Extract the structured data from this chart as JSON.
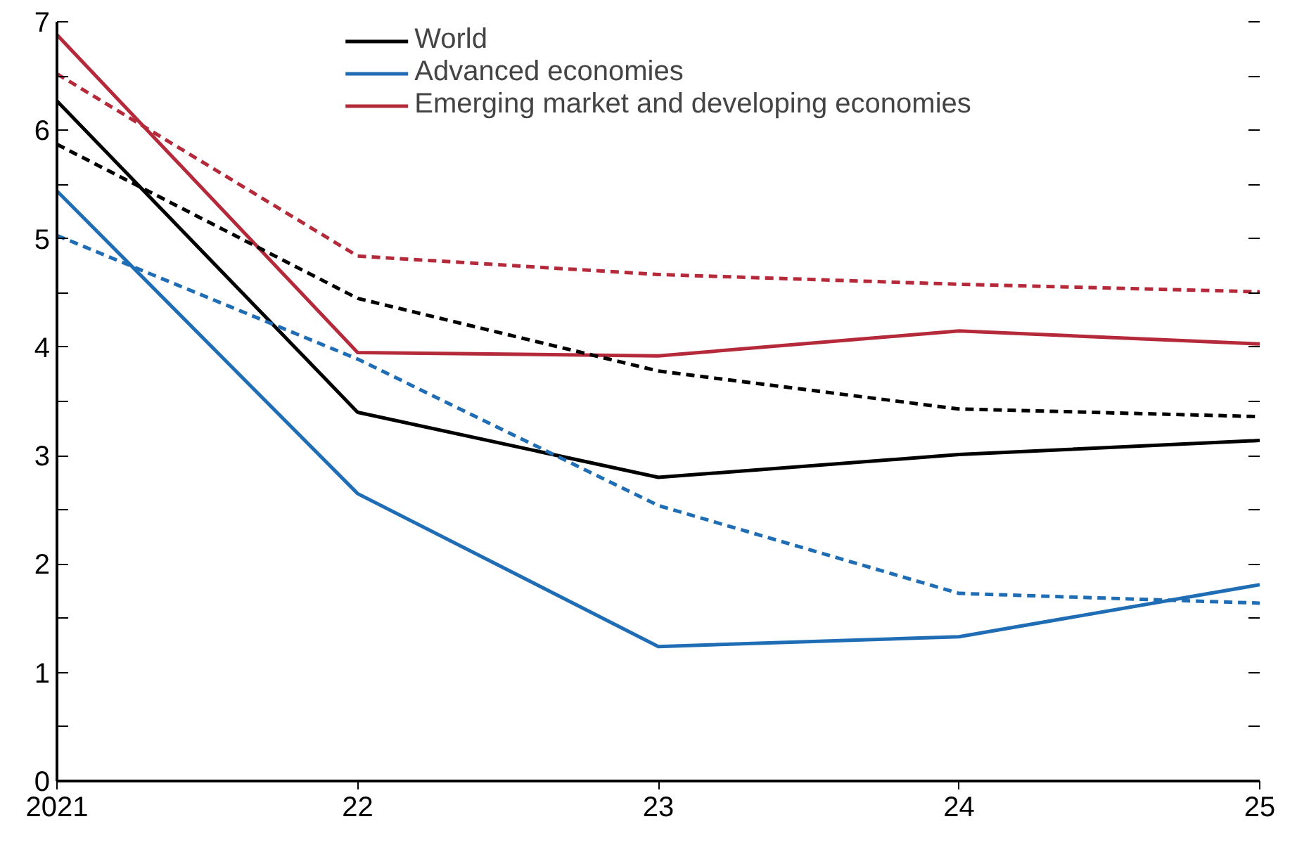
{
  "chart_data": {
    "type": "line",
    "x": [
      2021,
      2022,
      2023,
      2024,
      2025
    ],
    "xlim": [
      2021,
      2025
    ],
    "xticks": [
      {
        "value": 2021,
        "label": "2021"
      },
      {
        "value": 2022,
        "label": "22"
      },
      {
        "value": 2023,
        "label": "23"
      },
      {
        "value": 2024,
        "label": "24"
      },
      {
        "value": 2025,
        "label": "25"
      }
    ],
    "ylim": [
      0,
      7
    ],
    "yticks": [
      0,
      {
        "value": 0.5,
        "label": null
      },
      1,
      {
        "value": 1.5,
        "label": null
      },
      2,
      {
        "value": 2.5,
        "label": null
      },
      3,
      {
        "value": 3.5,
        "label": null
      },
      4,
      {
        "value": 4.5,
        "label": null
      },
      5,
      {
        "value": 5.5,
        "label": null
      },
      6,
      {
        "value": 6.5,
        "label": null
      },
      7
    ],
    "series": [
      {
        "name": "World",
        "color": "#000000",
        "line_style": "solid",
        "values": [
          6.27,
          3.4,
          2.8,
          3.01,
          3.14
        ]
      },
      {
        "name": "Advanced economies",
        "color": "#1f6db4",
        "line_style": "solid",
        "values": [
          5.44,
          2.65,
          1.24,
          1.33,
          1.81
        ]
      },
      {
        "name": "Emerging market and developing economies",
        "color": "#b52a3b",
        "line_style": "solid",
        "values": [
          6.88,
          3.95,
          3.92,
          4.15,
          4.03
        ]
      },
      {
        "color": "#000000",
        "line_style": "dashed",
        "values": [
          5.87,
          4.45,
          3.78,
          3.43,
          3.36
        ]
      },
      {
        "color": "#1f6db4",
        "line_style": "dashed",
        "values": [
          5.03,
          3.89,
          2.54,
          1.73,
          1.64
        ]
      },
      {
        "color": "#b52a3b",
        "line_style": "dashed",
        "values": [
          6.52,
          4.84,
          4.67,
          4.58,
          4.51
        ]
      }
    ],
    "legend": "top",
    "grid": false,
    "marker": "none"
  }
}
